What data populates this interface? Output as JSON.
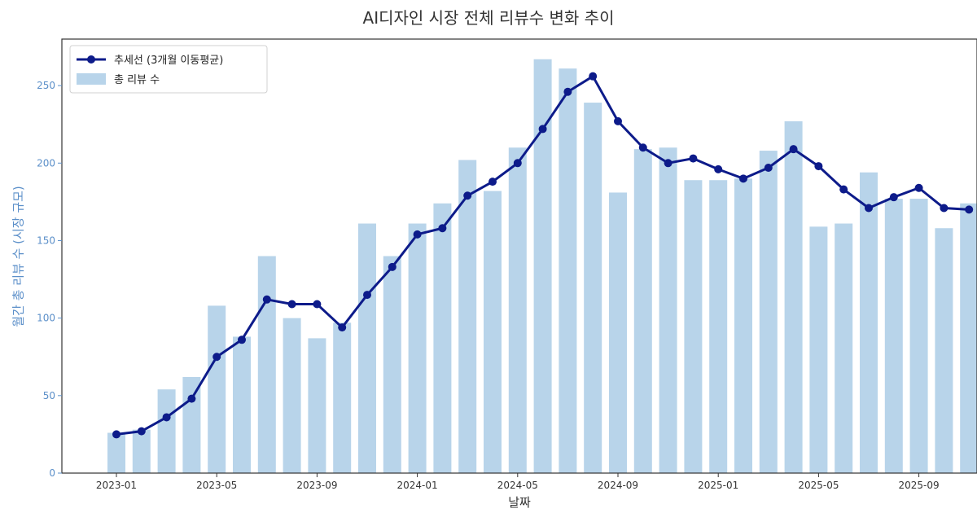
{
  "chart_data": {
    "type": "bar",
    "title": "AI디자인 시장 전체 리뷰수 변화 추이",
    "xlabel": "날짜",
    "ylabel": "월간 총 리뷰 수 (시장 규모)",
    "ylim": [
      0,
      280
    ],
    "yticks": [
      0,
      50,
      100,
      150,
      200,
      250
    ],
    "categories": [
      "2023-01",
      "2023-02",
      "2023-03",
      "2023-04",
      "2023-05",
      "2023-06",
      "2023-07",
      "2023-08",
      "2023-09",
      "2023-10",
      "2023-11",
      "2023-12",
      "2024-01",
      "2024-02",
      "2024-03",
      "2024-04",
      "2024-05",
      "2024-06",
      "2024-07",
      "2024-08",
      "2024-09",
      "2024-10",
      "2024-11",
      "2024-12",
      "2025-01",
      "2025-02",
      "2025-03",
      "2025-04",
      "2025-05",
      "2025-06",
      "2025-07",
      "2025-08",
      "2025-09",
      "2025-10",
      "2025-11"
    ],
    "xtick_labels": [
      {
        "index": 0,
        "label": "2023-01"
      },
      {
        "index": 4,
        "label": "2023-05"
      },
      {
        "index": 8,
        "label": "2023-09"
      },
      {
        "index": 12,
        "label": "2024-01"
      },
      {
        "index": 16,
        "label": "2024-05"
      },
      {
        "index": 20,
        "label": "2024-09"
      },
      {
        "index": 24,
        "label": "2025-01"
      },
      {
        "index": 28,
        "label": "2025-05"
      },
      {
        "index": 32,
        "label": "2025-09"
      }
    ],
    "series": [
      {
        "name": "총 리뷰 수",
        "kind": "bar",
        "color": "#b8d4ea",
        "values": [
          26,
          28,
          54,
          62,
          108,
          88,
          140,
          100,
          87,
          97,
          161,
          140,
          161,
          174,
          202,
          182,
          210,
          267,
          261,
          239,
          181,
          209,
          210,
          189,
          189,
          190,
          208,
          227,
          159,
          161,
          194,
          177,
          177,
          158,
          174
        ]
      },
      {
        "name": "추세선 (3개월 이동평균)",
        "kind": "line",
        "color": "#0d1b8a",
        "values": [
          25,
          27,
          36,
          48,
          75,
          86,
          112,
          109,
          109,
          94,
          115,
          133,
          154,
          158,
          179,
          188,
          200,
          222,
          246,
          256,
          227,
          210,
          200,
          203,
          196,
          190,
          197,
          209,
          198,
          183,
          171,
          178,
          184,
          171,
          170
        ]
      }
    ],
    "legend_position": "top-left",
    "grid": false
  }
}
